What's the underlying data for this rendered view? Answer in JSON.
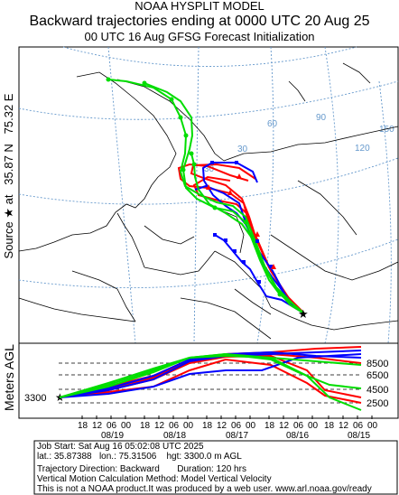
{
  "header": {
    "model": "NOAA HYSPLIT MODEL",
    "title": "Backward trajectories ending at 0000 UTC 20 Aug 25",
    "subtitle": "00 UTC 16 Aug    GFSG  Forecast Initialization"
  },
  "source_label": "Source ★ at   35.87 N   75.32 E",
  "map": {
    "grid_labels": [
      "150",
      "120",
      "90",
      "60",
      "30",
      "30"
    ],
    "source_lat": 35.87,
    "source_lon": 75.32
  },
  "vertical": {
    "ylabel": "Meters AGL",
    "source_height": "3300",
    "yticks": [
      "8500",
      "6500",
      "4500",
      "2500"
    ],
    "time_ticks": [
      "18",
      "12",
      "06",
      "00",
      "18",
      "12",
      "06",
      "00",
      "18",
      "12",
      "06",
      "00",
      "18",
      "12",
      "06",
      "00",
      "18",
      "12",
      "06",
      "00"
    ],
    "date_ticks": [
      "08/19",
      "08/18",
      "08/17",
      "08/16",
      "08/15"
    ]
  },
  "info": {
    "line1": "Job Start: Sat Aug 16 05:02:08 UTC 2025",
    "line2": "lat.: 35.87388   lon.: 75.31506    hgt: 3300.0 m AGL",
    "line3": "Trajectory Direction: Backward       Duration: 120 hrs",
    "line4": "Vertical Motion Calculation Method: Model Vertical Velocity",
    "line5": "This is not a NOAA product.It was produced by a web user. www.arl.noaa.gov/ready"
  },
  "colors": {
    "series_red": "#ff0000",
    "series_blue": "#0000ff",
    "series_green": "#00dd00",
    "coast": "#000000",
    "grid": "#6699cc"
  }
}
